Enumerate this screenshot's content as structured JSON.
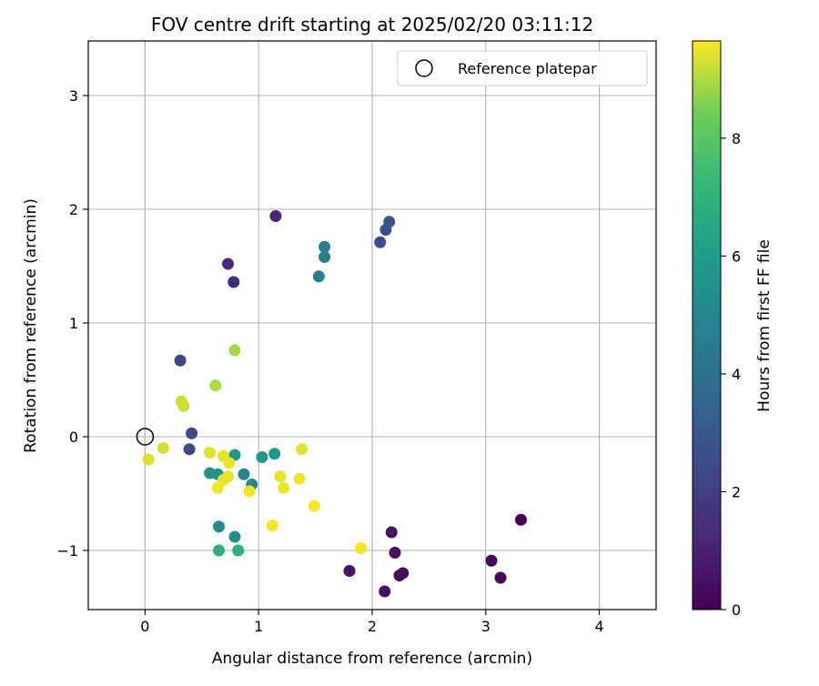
{
  "chart_data": {
    "type": "scatter",
    "title": "FOV centre drift starting at 2025/02/20 03:11:12",
    "xlabel": "Angular distance from reference (arcmin)",
    "ylabel": "Rotation from reference (arcmin)",
    "xlim": [
      -0.5,
      4.5
    ],
    "ylim": [
      -1.52,
      3.48
    ],
    "xticks": [
      0,
      1,
      2,
      3,
      4
    ],
    "xtick_labels": [
      "0",
      "1",
      "2",
      "3",
      "4"
    ],
    "yticks": [
      -1,
      0,
      1,
      2,
      3
    ],
    "ytick_labels": [
      "−1",
      "0",
      "1",
      "2",
      "3"
    ],
    "grid": true,
    "legend": {
      "position": "top-right",
      "entries": [
        {
          "label": "Reference platepar",
          "marker": "hollow-circle"
        }
      ]
    },
    "reference_point": {
      "x": 0,
      "y": 0
    },
    "colorbar": {
      "label": "Hours from first FF file",
      "colormap": "viridis",
      "range": [
        0,
        9.65
      ],
      "ticks": [
        0,
        2,
        4,
        6,
        8
      ],
      "tick_labels": [
        "0",
        "2",
        "4",
        "6",
        "8"
      ]
    },
    "points": [
      {
        "x": 3.31,
        "y": -0.73,
        "hours": 0.05
      },
      {
        "x": 3.05,
        "y": -1.09,
        "hours": 0.1
      },
      {
        "x": 3.13,
        "y": -1.24,
        "hours": 0.15
      },
      {
        "x": 2.27,
        "y": -1.2,
        "hours": 0.3
      },
      {
        "x": 2.24,
        "y": -1.22,
        "hours": 0.35
      },
      {
        "x": 2.2,
        "y": -1.02,
        "hours": 0.4
      },
      {
        "x": 2.17,
        "y": -0.84,
        "hours": 0.45
      },
      {
        "x": 2.11,
        "y": -1.36,
        "hours": 0.5
      },
      {
        "x": 1.8,
        "y": -1.18,
        "hours": 0.6
      },
      {
        "x": 1.15,
        "y": 1.94,
        "hours": 1.1
      },
      {
        "x": 0.73,
        "y": 1.52,
        "hours": 1.2
      },
      {
        "x": 0.78,
        "y": 1.36,
        "hours": 1.25
      },
      {
        "x": 0.31,
        "y": 0.67,
        "hours": 2.3
      },
      {
        "x": 0.41,
        "y": 0.03,
        "hours": 2.4
      },
      {
        "x": 0.39,
        "y": -0.11,
        "hours": 2.45
      },
      {
        "x": 2.07,
        "y": 1.71,
        "hours": 2.6
      },
      {
        "x": 2.12,
        "y": 1.82,
        "hours": 2.7
      },
      {
        "x": 2.15,
        "y": 1.89,
        "hours": 2.8
      },
      {
        "x": 1.58,
        "y": 1.67,
        "hours": 4.6
      },
      {
        "x": 1.58,
        "y": 1.58,
        "hours": 4.7
      },
      {
        "x": 1.53,
        "y": 1.41,
        "hours": 4.8
      },
      {
        "x": 0.87,
        "y": -0.33,
        "hours": 5.0
      },
      {
        "x": 0.94,
        "y": -0.42,
        "hours": 5.1
      },
      {
        "x": 0.65,
        "y": -0.79,
        "hours": 5.2
      },
      {
        "x": 0.79,
        "y": -0.88,
        "hours": 5.3
      },
      {
        "x": 0.57,
        "y": -0.32,
        "hours": 5.5
      },
      {
        "x": 0.64,
        "y": -0.33,
        "hours": 5.6
      },
      {
        "x": 1.03,
        "y": -0.18,
        "hours": 5.7
      },
      {
        "x": 1.14,
        "y": -0.15,
        "hours": 5.75
      },
      {
        "x": 0.79,
        "y": -0.16,
        "hours": 5.8
      },
      {
        "x": 0.65,
        "y": -1.0,
        "hours": 6.8
      },
      {
        "x": 0.82,
        "y": -1.0,
        "hours": 6.9
      },
      {
        "x": 0.79,
        "y": 0.76,
        "hours": 8.9
      },
      {
        "x": 0.62,
        "y": 0.45,
        "hours": 9.0
      },
      {
        "x": 0.32,
        "y": 0.31,
        "hours": 9.2
      },
      {
        "x": 0.34,
        "y": 0.27,
        "hours": 9.25
      },
      {
        "x": 0.16,
        "y": -0.1,
        "hours": 9.3
      },
      {
        "x": 0.03,
        "y": -0.2,
        "hours": 9.35
      },
      {
        "x": 0.57,
        "y": -0.14,
        "hours": 9.4
      },
      {
        "x": 0.69,
        "y": -0.17,
        "hours": 9.45
      },
      {
        "x": 0.74,
        "y": -0.23,
        "hours": 9.5
      },
      {
        "x": 0.73,
        "y": -0.35,
        "hours": 9.5
      },
      {
        "x": 0.69,
        "y": -0.38,
        "hours": 9.5
      },
      {
        "x": 0.64,
        "y": -0.45,
        "hours": 9.55
      },
      {
        "x": 0.92,
        "y": -0.48,
        "hours": 9.55
      },
      {
        "x": 1.19,
        "y": -0.35,
        "hours": 9.5
      },
      {
        "x": 1.22,
        "y": -0.45,
        "hours": 9.5
      },
      {
        "x": 1.36,
        "y": -0.37,
        "hours": 9.55
      },
      {
        "x": 1.38,
        "y": -0.11,
        "hours": 9.4
      },
      {
        "x": 1.49,
        "y": -0.61,
        "hours": 9.6
      },
      {
        "x": 1.12,
        "y": -0.78,
        "hours": 9.6
      },
      {
        "x": 1.9,
        "y": -0.98,
        "hours": 9.6
      }
    ]
  }
}
